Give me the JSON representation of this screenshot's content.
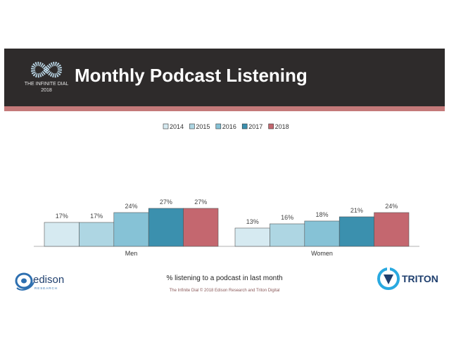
{
  "banner": {
    "title": "Monthly Podcast Listening",
    "brand_name": "THE INFINITE DIAL",
    "brand_year": "2018",
    "brand_icon": "infinity-icon",
    "accent_color": "#c47a7a",
    "background_color": "#2e2b2b"
  },
  "chart_data": {
    "type": "bar",
    "categories": [
      "Men",
      "Women"
    ],
    "series": [
      {
        "name": "2014",
        "values": [
          17,
          13
        ],
        "color": "#d6eaf1"
      },
      {
        "name": "2015",
        "values": [
          17,
          16
        ],
        "color": "#aed6e3"
      },
      {
        "name": "2016",
        "values": [
          24,
          18
        ],
        "color": "#86c2d6"
      },
      {
        "name": "2017",
        "values": [
          27,
          21
        ],
        "color": "#3b90ae"
      },
      {
        "name": "2018",
        "values": [
          27,
          24
        ],
        "color": "#c4676f"
      }
    ],
    "value_suffix": "%",
    "ylim": [
      0,
      60
    ],
    "legend_position": "top-center",
    "grid": false,
    "xlabel": "% listening to a podcast in last month"
  },
  "footer": {
    "credit": "The Infinite Dial   © 2018 Edison Research and Triton Digital",
    "edison_name": "edison",
    "edison_sub": "RESEARCH",
    "triton_name": "TRITON"
  }
}
